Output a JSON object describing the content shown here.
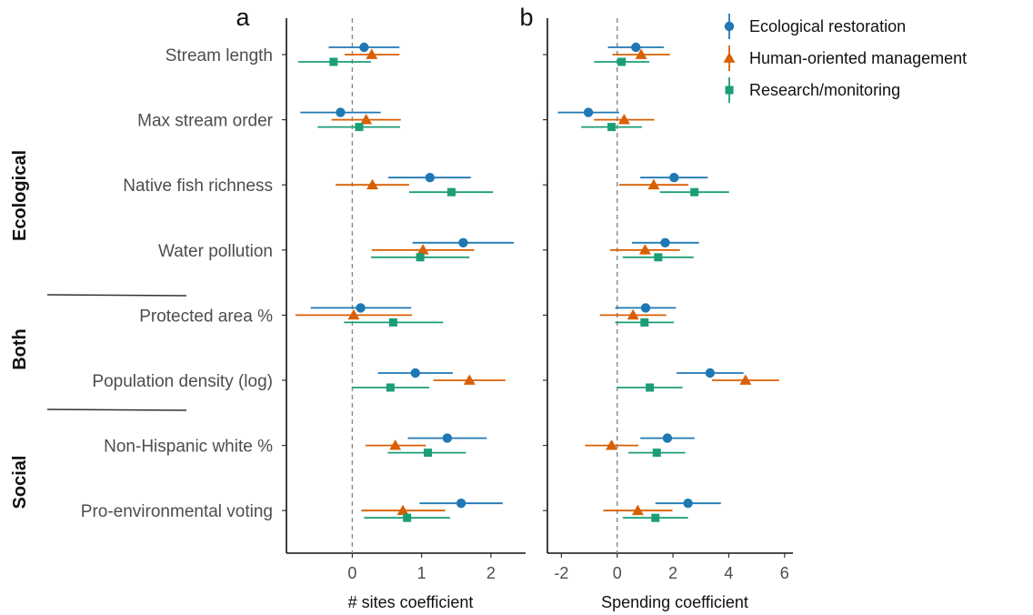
{
  "chart_data": {
    "type": "scatter",
    "subtype": "forest-plot",
    "legend": {
      "placement": "top-right"
    },
    "colors": {
      "Ecological restoration": "#1f78b4",
      "Human-oriented management": "#d95f02",
      "Research/monitoring": "#1b9e77"
    },
    "markers": {
      "Ecological restoration": "circle",
      "Human-oriented management": "triangle",
      "Research/monitoring": "square"
    },
    "categories": [
      "Stream length",
      "Max stream order",
      "Native fish richness",
      "Water pollution",
      "Protected area %",
      "Population density (log)",
      "Non-Hispanic white %",
      "Pro-environmental voting"
    ],
    "groups": [
      {
        "label": "Ecological",
        "categories": [
          "Stream length",
          "Max stream order",
          "Native fish richness",
          "Water pollution"
        ]
      },
      {
        "label": "Both",
        "categories": [
          "Protected area %",
          "Population density (log)"
        ]
      },
      {
        "label": "Social",
        "categories": [
          "Non-Hispanic white %",
          "Pro-environmental voting"
        ]
      }
    ],
    "series_names": [
      "Ecological restoration",
      "Human-oriented management",
      "Research/monitoring"
    ],
    "panels": [
      {
        "letter": "a",
        "xlabel": "# sites coefficient",
        "xlim": [
          -0.95,
          2.5
        ],
        "xticks": [
          0,
          1,
          2
        ],
        "grid": false,
        "series": [
          {
            "name": "Ecological restoration",
            "estimates": [
              0.17,
              -0.17,
              1.12,
              1.6,
              0.12,
              0.91,
              1.37,
              1.57
            ],
            "lower": [
              -0.34,
              -0.75,
              0.52,
              0.87,
              -0.6,
              0.37,
              0.8,
              0.97
            ],
            "upper": [
              0.68,
              0.41,
              1.71,
              2.33,
              0.85,
              1.45,
              1.94,
              2.17
            ]
          },
          {
            "name": "Human-oriented management",
            "estimates": [
              0.28,
              0.2,
              0.29,
              1.02,
              0.02,
              1.69,
              0.62,
              0.73
            ],
            "lower": [
              -0.11,
              -0.3,
              -0.24,
              0.28,
              -0.82,
              1.17,
              0.19,
              0.13
            ],
            "upper": [
              0.68,
              0.7,
              0.82,
              1.76,
              0.86,
              2.21,
              1.06,
              1.34
            ]
          },
          {
            "name": "Research/monitoring",
            "estimates": [
              -0.27,
              0.1,
              1.43,
              0.98,
              0.59,
              0.55,
              1.09,
              0.79
            ],
            "lower": [
              -0.78,
              -0.5,
              0.82,
              0.27,
              -0.12,
              0.0,
              0.51,
              0.17
            ],
            "upper": [
              0.27,
              0.69,
              2.03,
              1.69,
              1.31,
              1.11,
              1.64,
              1.41
            ]
          }
        ]
      },
      {
        "letter": "b",
        "xlabel": "Spending coefficient",
        "xlim": [
          -2.5,
          6.3
        ],
        "xticks": [
          -2,
          0,
          2,
          4,
          6
        ],
        "grid": false,
        "series": [
          {
            "name": "Ecological restoration",
            "estimates": [
              0.67,
              -1.03,
              2.04,
              1.72,
              1.02,
              3.33,
              1.8,
              2.54
            ],
            "lower": [
              -0.33,
              -2.13,
              0.83,
              0.53,
              -0.07,
              2.13,
              0.83,
              1.37
            ],
            "upper": [
              1.67,
              0.07,
              3.25,
              2.93,
              2.11,
              4.53,
              2.77,
              3.72
            ]
          },
          {
            "name": "Human-oriented management",
            "estimates": [
              0.86,
              0.25,
              1.31,
              1.0,
              0.57,
              4.6,
              -0.2,
              0.74
            ],
            "lower": [
              -0.17,
              -0.83,
              0.07,
              -0.25,
              -0.62,
              3.4,
              -1.15,
              -0.5
            ],
            "upper": [
              1.89,
              1.33,
              2.55,
              2.25,
              1.76,
              5.8,
              0.76,
              1.98
            ]
          },
          {
            "name": "Research/monitoring",
            "estimates": [
              0.16,
              -0.2,
              2.77,
              1.47,
              0.98,
              1.17,
              1.42,
              1.37
            ],
            "lower": [
              -0.83,
              -1.29,
              1.53,
              0.2,
              -0.07,
              0.0,
              0.4,
              0.2
            ],
            "upper": [
              1.15,
              0.89,
              4.01,
              2.74,
              2.03,
              2.34,
              2.44,
              2.54
            ]
          }
        ]
      }
    ]
  }
}
